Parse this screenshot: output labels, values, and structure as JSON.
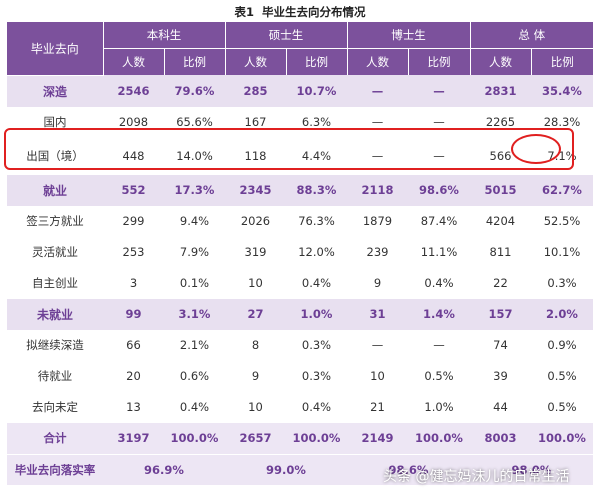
{
  "caption": {
    "number": "表1",
    "title": "毕业生去向分布情况"
  },
  "header": {
    "row_label": "毕业去向",
    "groups": [
      "本科生",
      "硕士生",
      "博士生",
      "总  体"
    ],
    "sub": [
      "人数",
      "比例"
    ]
  },
  "rows": [
    {
      "label": "深造",
      "kind": "cat",
      "cells": [
        "2546",
        "79.6%",
        "285",
        "10.7%",
        "—",
        "—",
        "2831",
        "35.4%"
      ]
    },
    {
      "label": "国内",
      "kind": "sub",
      "cells": [
        "2098",
        "65.6%",
        "167",
        "6.3%",
        "—",
        "—",
        "2265",
        "28.3%"
      ]
    },
    {
      "label": "出国（境）",
      "kind": "sub",
      "cells": [
        "448",
        "14.0%",
        "118",
        "4.4%",
        "—",
        "—",
        "566",
        "7.1%"
      ]
    },
    {
      "label": "就业",
      "kind": "cat",
      "cells": [
        "552",
        "17.3%",
        "2345",
        "88.3%",
        "2118",
        "98.6%",
        "5015",
        "62.7%"
      ]
    },
    {
      "label": "签三方就业",
      "kind": "sub",
      "cells": [
        "299",
        "9.4%",
        "2026",
        "76.3%",
        "1879",
        "87.4%",
        "4204",
        "52.5%"
      ]
    },
    {
      "label": "灵活就业",
      "kind": "sub",
      "cells": [
        "253",
        "7.9%",
        "319",
        "12.0%",
        "239",
        "11.1%",
        "811",
        "10.1%"
      ]
    },
    {
      "label": "自主创业",
      "kind": "sub",
      "cells": [
        "3",
        "0.1%",
        "10",
        "0.4%",
        "9",
        "0.4%",
        "22",
        "0.3%"
      ]
    },
    {
      "label": "未就业",
      "kind": "cat",
      "cells": [
        "99",
        "3.1%",
        "27",
        "1.0%",
        "31",
        "1.4%",
        "157",
        "2.0%"
      ]
    },
    {
      "label": "拟继续深造",
      "kind": "sub",
      "cells": [
        "66",
        "2.1%",
        "8",
        "0.3%",
        "—",
        "—",
        "74",
        "0.9%"
      ]
    },
    {
      "label": "待就业",
      "kind": "sub",
      "cells": [
        "20",
        "0.6%",
        "9",
        "0.3%",
        "10",
        "0.5%",
        "39",
        "0.5%"
      ]
    },
    {
      "label": "去向未定",
      "kind": "sub",
      "cells": [
        "13",
        "0.4%",
        "10",
        "0.4%",
        "21",
        "1.0%",
        "44",
        "0.5%"
      ]
    },
    {
      "label": "合计",
      "kind": "sum",
      "cells": [
        "3197",
        "100.0%",
        "2657",
        "100.0%",
        "2149",
        "100.0%",
        "8003",
        "100.0%"
      ]
    }
  ],
  "rate_row": {
    "label": "毕业去向落实率",
    "values": [
      "96.9%",
      "99.0%",
      "98.6%",
      "98.0%"
    ]
  },
  "watermark": "头条 @健忘妈沫儿的日常生活",
  "colors": {
    "header": "#7c519c",
    "category_bg": "#e8e0f0",
    "accent_text": "#6d3f95",
    "highlight": "#e02020"
  }
}
